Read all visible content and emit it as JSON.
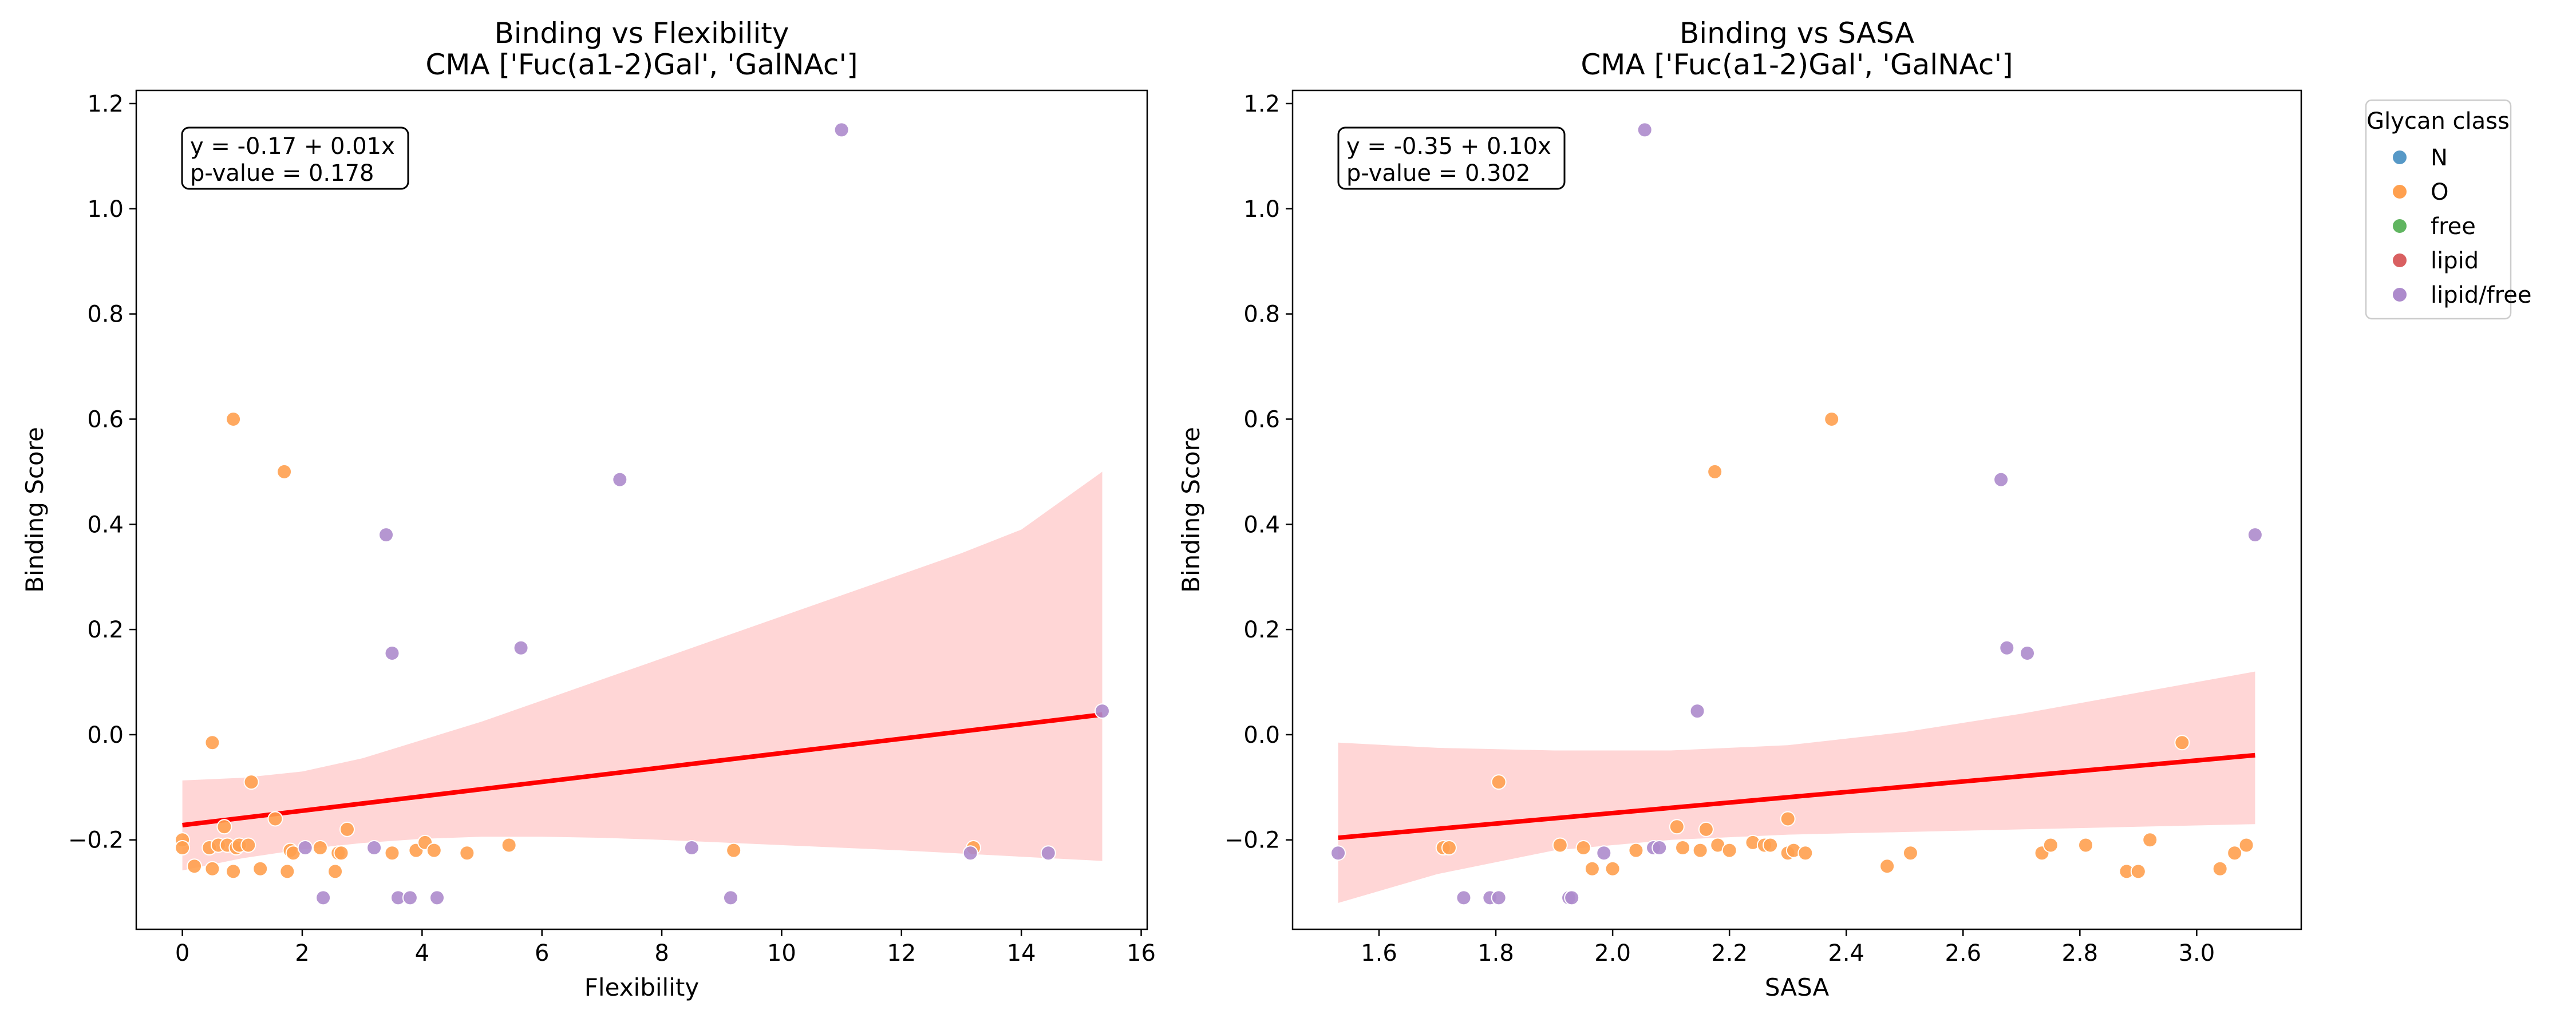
{
  "legend": {
    "title": "Glycan class",
    "entries": [
      {
        "label": "N",
        "color": "#5799c7"
      },
      {
        "label": "O",
        "color": "#ffa04f"
      },
      {
        "label": "free",
        "color": "#60b560"
      },
      {
        "label": "lipid",
        "color": "#d96061"
      },
      {
        "label": "lipid/free",
        "color": "#ad8bcc"
      }
    ]
  },
  "chart_data": [
    {
      "type": "scatter",
      "title": "Binding vs Flexibility",
      "subtitle": "CMA ['Fuc(a1-2)Gal', 'GalNAc']",
      "xlabel": "Flexibility",
      "ylabel": "Binding Score",
      "xlim": [
        -0.77,
        16.1
      ],
      "ylim": [
        -0.37,
        1.225
      ],
      "xticks": [
        0,
        2,
        4,
        6,
        8,
        10,
        12,
        14,
        16
      ],
      "yticks": [
        -0.2,
        0.0,
        0.2,
        0.4,
        0.6,
        0.8,
        1.0,
        1.2
      ],
      "xtick_labels": [
        "0",
        "2",
        "4",
        "6",
        "8",
        "10",
        "12",
        "14",
        "16"
      ],
      "ytick_labels": [
        "−0.2",
        "0.0",
        "0.2",
        "0.4",
        "0.6",
        "0.8",
        "1.0",
        "1.2"
      ],
      "annotation": [
        "y = -0.17 + 0.01x",
        "p-value = 0.178"
      ],
      "regression": {
        "intercept": -0.172,
        "slope": 0.0137,
        "x_range": [
          0,
          15.35
        ],
        "color": "#ff0000"
      },
      "ci_band": {
        "x": [
          0,
          1,
          2,
          3,
          4,
          5,
          6,
          7,
          8,
          9,
          10,
          11,
          12,
          13,
          14,
          15.35
        ],
        "lower": [
          -0.258,
          -0.235,
          -0.218,
          -0.206,
          -0.198,
          -0.194,
          -0.194,
          -0.196,
          -0.2,
          -0.205,
          -0.21,
          -0.215,
          -0.22,
          -0.226,
          -0.232,
          -0.24
        ],
        "upper": [
          -0.087,
          -0.082,
          -0.07,
          -0.045,
          -0.01,
          0.025,
          0.065,
          0.105,
          0.145,
          0.185,
          0.225,
          0.265,
          0.305,
          0.345,
          0.39,
          0.5
        ],
        "color": "#ffd6d6"
      },
      "series": [
        {
          "name": "O",
          "color": "#ffa04f",
          "points": [
            [
              0,
              -0.2
            ],
            [
              0,
              -0.215
            ],
            [
              0.2,
              -0.25
            ],
            [
              0.45,
              -0.215
            ],
            [
              0.5,
              -0.255
            ],
            [
              0.5,
              -0.015
            ],
            [
              0.6,
              -0.21
            ],
            [
              0.7,
              -0.175
            ],
            [
              0.75,
              -0.21
            ],
            [
              0.85,
              -0.26
            ],
            [
              0.85,
              0.6
            ],
            [
              0.9,
              -0.215
            ],
            [
              0.95,
              -0.21
            ],
            [
              1.1,
              -0.21
            ],
            [
              1.15,
              -0.09
            ],
            [
              1.3,
              -0.255
            ],
            [
              1.55,
              -0.16
            ],
            [
              1.7,
              0.5
            ],
            [
              1.75,
              -0.26
            ],
            [
              1.8,
              -0.22
            ],
            [
              1.85,
              -0.225
            ],
            [
              2.3,
              -0.215
            ],
            [
              2.55,
              -0.26
            ],
            [
              2.6,
              -0.225
            ],
            [
              2.65,
              -0.225
            ],
            [
              2.75,
              -0.18
            ],
            [
              3.5,
              -0.225
            ],
            [
              3.9,
              -0.22
            ],
            [
              4.05,
              -0.205
            ],
            [
              4.2,
              -0.22
            ],
            [
              4.75,
              -0.225
            ],
            [
              5.45,
              -0.21
            ],
            [
              9.2,
              -0.22
            ],
            [
              13.2,
              -0.215
            ]
          ]
        },
        {
          "name": "lipid/free",
          "color": "#ad8bcc",
          "points": [
            [
              2.05,
              -0.215
            ],
            [
              2.35,
              -0.31
            ],
            [
              3.2,
              -0.215
            ],
            [
              3.4,
              0.38
            ],
            [
              3.5,
              0.155
            ],
            [
              3.6,
              -0.31
            ],
            [
              3.8,
              -0.31
            ],
            [
              4.25,
              -0.31
            ],
            [
              5.65,
              0.165
            ],
            [
              7.3,
              0.485
            ],
            [
              8.5,
              -0.215
            ],
            [
              9.15,
              -0.31
            ],
            [
              11.0,
              1.15
            ],
            [
              13.15,
              -0.225
            ],
            [
              14.45,
              -0.225
            ],
            [
              15.35,
              0.045
            ]
          ]
        }
      ]
    },
    {
      "type": "scatter",
      "title": "Binding vs SASA",
      "subtitle": "CMA ['Fuc(a1-2)Gal', 'GalNAc']",
      "xlabel": "SASA",
      "ylabel": "Binding Score",
      "xlim": [
        1.452,
        3.179
      ],
      "ylim": [
        -0.37,
        1.225
      ],
      "xticks": [
        1.6,
        1.8,
        2.0,
        2.2,
        2.4,
        2.6,
        2.8,
        3.0
      ],
      "yticks": [
        -0.2,
        0.0,
        0.2,
        0.4,
        0.6,
        0.8,
        1.0,
        1.2
      ],
      "xtick_labels": [
        "1.6",
        "1.8",
        "2.0",
        "2.2",
        "2.4",
        "2.6",
        "2.8",
        "3.0"
      ],
      "ytick_labels": [
        "−0.2",
        "0.0",
        "0.2",
        "0.4",
        "0.6",
        "0.8",
        "1.0",
        "1.2"
      ],
      "annotation": [
        "y = -0.35 + 0.10x",
        "p-value = 0.302"
      ],
      "regression": {
        "intercept": -0.349,
        "slope": 0.1,
        "x_range": [
          1.53,
          3.1
        ],
        "color": "#ff0000"
      },
      "ci_band": {
        "x": [
          1.53,
          1.7,
          1.9,
          2.1,
          2.3,
          2.5,
          2.7,
          2.9,
          3.1
        ],
        "lower": [
          -0.32,
          -0.265,
          -0.22,
          -0.2,
          -0.19,
          -0.185,
          -0.18,
          -0.175,
          -0.17
        ],
        "upper": [
          -0.015,
          -0.025,
          -0.03,
          -0.03,
          -0.02,
          0.005,
          0.04,
          0.08,
          0.12
        ],
        "color": "#ffd6d6"
      },
      "series": [
        {
          "name": "O",
          "color": "#ffa04f",
          "points": [
            [
              1.71,
              -0.215
            ],
            [
              1.72,
              -0.215
            ],
            [
              1.805,
              -0.09
            ],
            [
              1.91,
              -0.21
            ],
            [
              1.95,
              -0.215
            ],
            [
              1.965,
              -0.255
            ],
            [
              2.0,
              -0.255
            ],
            [
              2.04,
              -0.22
            ],
            [
              2.11,
              -0.175
            ],
            [
              2.12,
              -0.215
            ],
            [
              2.15,
              -0.22
            ],
            [
              2.16,
              -0.18
            ],
            [
              2.175,
              0.5
            ],
            [
              2.18,
              -0.21
            ],
            [
              2.2,
              -0.22
            ],
            [
              2.24,
              -0.205
            ],
            [
              2.26,
              -0.21
            ],
            [
              2.27,
              -0.21
            ],
            [
              2.3,
              -0.16
            ],
            [
              2.3,
              -0.225
            ],
            [
              2.31,
              -0.22
            ],
            [
              2.33,
              -0.225
            ],
            [
              2.375,
              0.6
            ],
            [
              2.47,
              -0.25
            ],
            [
              2.51,
              -0.225
            ],
            [
              2.735,
              -0.225
            ],
            [
              2.75,
              -0.21
            ],
            [
              2.81,
              -0.21
            ],
            [
              2.88,
              -0.26
            ],
            [
              2.9,
              -0.26
            ],
            [
              2.92,
              -0.2
            ],
            [
              2.975,
              -0.015
            ],
            [
              3.04,
              -0.255
            ],
            [
              3.065,
              -0.225
            ],
            [
              3.085,
              -0.21
            ]
          ]
        },
        {
          "name": "lipid/free",
          "color": "#ad8bcc",
          "points": [
            [
              1.53,
              -0.225
            ],
            [
              1.745,
              -0.31
            ],
            [
              1.79,
              -0.31
            ],
            [
              1.805,
              -0.31
            ],
            [
              1.925,
              -0.31
            ],
            [
              1.93,
              -0.31
            ],
            [
              1.985,
              -0.225
            ],
            [
              2.055,
              1.15
            ],
            [
              2.07,
              -0.215
            ],
            [
              2.08,
              -0.215
            ],
            [
              2.145,
              0.045
            ],
            [
              2.665,
              0.485
            ],
            [
              2.675,
              0.165
            ],
            [
              2.71,
              0.155
            ],
            [
              3.1,
              0.38
            ]
          ]
        }
      ]
    }
  ]
}
